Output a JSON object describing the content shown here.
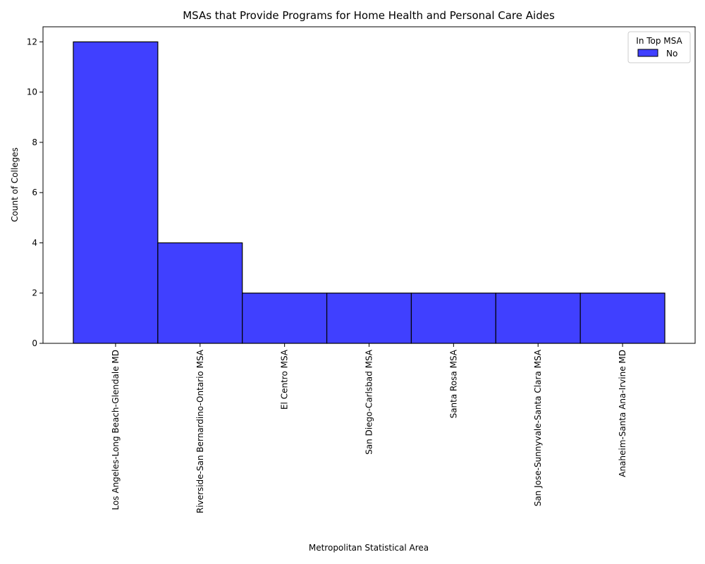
{
  "chart_data": {
    "type": "bar",
    "title": "MSAs that Provide Programs for Home Health and Personal Care Aides",
    "xlabel": "Metropolitan Statistical Area",
    "ylabel": "Count of Colleges",
    "categories": [
      "Los Angeles-Long Beach-Glendale MD",
      "Riverside-San Bernardino-Ontario MSA",
      "El Centro MSA",
      "San Diego-Carlsbad MSA",
      "Santa Rosa MSA",
      "San Jose-Sunnyvale-Santa Clara MSA",
      "Anaheim-Santa Ana-Irvine MD"
    ],
    "series": [
      {
        "name": "No",
        "values": [
          12,
          4,
          2,
          2,
          2,
          2,
          2
        ],
        "color": "#4040ff"
      }
    ],
    "ylim": [
      0,
      12.6
    ],
    "yticks": [
      0,
      2,
      4,
      6,
      8,
      10,
      12
    ],
    "grid": false,
    "legend": {
      "title": "In Top MSA",
      "placement": "top-right"
    },
    "bar_edge_color": "#000000"
  }
}
